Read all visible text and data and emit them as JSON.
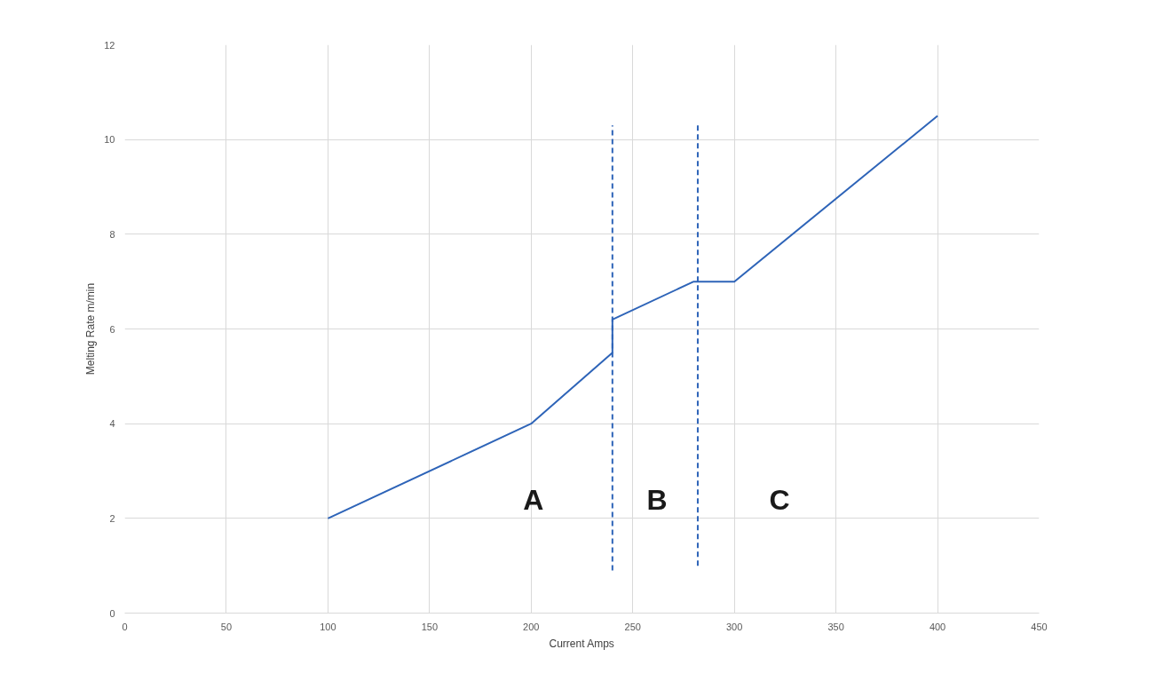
{
  "chart_data": {
    "type": "line",
    "xlabel": "Current Amps",
    "ylabel": "Melting Rate m/min",
    "xlim": [
      0,
      450
    ],
    "xticks": [
      0,
      50,
      100,
      150,
      200,
      250,
      300,
      350,
      400,
      450
    ],
    "ylim": [
      0,
      12
    ],
    "yticks": [
      0,
      2,
      4,
      6,
      8,
      10,
      12
    ],
    "grid": true,
    "line_style": "solid",
    "series": [
      {
        "color": "#2e64b8",
        "x": [
          100,
          200,
          240,
          240,
          280,
          300,
          400
        ],
        "values": [
          2,
          4,
          5.5,
          6.2,
          7,
          7,
          10.5
        ]
      },
      {
        "color": "#2e64b8",
        "line_style": "dashed",
        "x": [
          240,
          240
        ],
        "values": [
          0.9,
          10.3
        ]
      },
      {
        "color": "#2e64b8",
        "line_style": "dashed",
        "x": [
          282,
          282
        ],
        "values": [
          1,
          10.3
        ]
      }
    ],
    "annotations": [
      "A",
      "B",
      "C"
    ]
  }
}
